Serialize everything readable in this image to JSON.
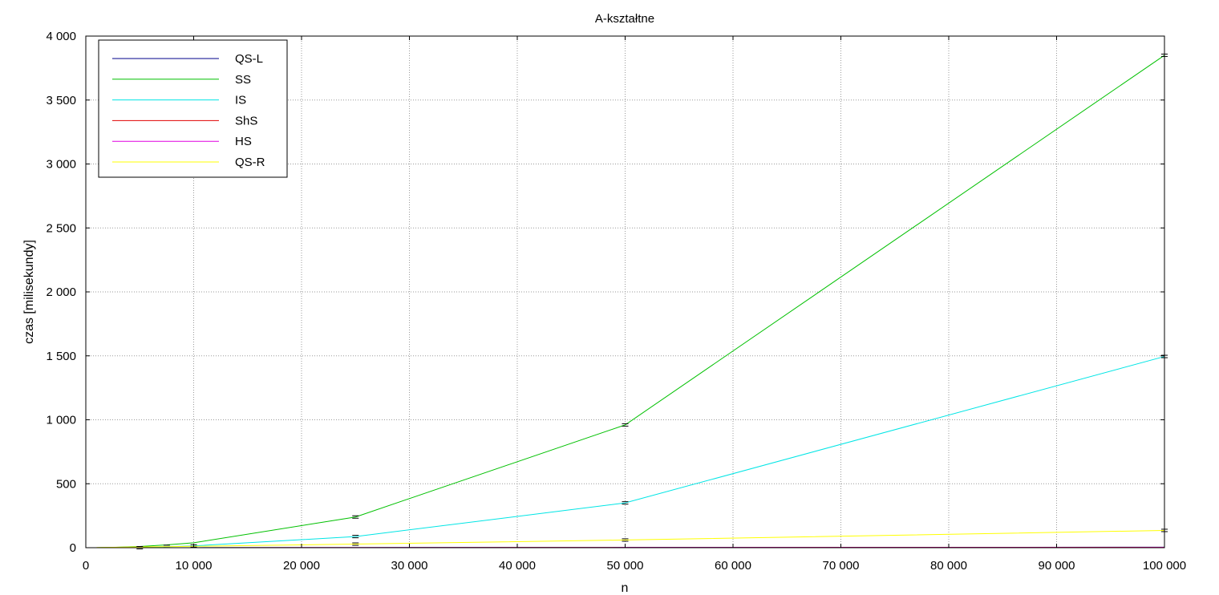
{
  "chart_data": {
    "type": "line",
    "title": "A-kształtne",
    "xlabel": "n",
    "ylabel": "czas [milisekundy]",
    "xlim": [
      0,
      100000
    ],
    "ylim": [
      0,
      4000
    ],
    "x_ticks": [
      0,
      10000,
      20000,
      30000,
      40000,
      50000,
      60000,
      70000,
      80000,
      90000,
      100000
    ],
    "x_tick_labels": [
      "0",
      "10 000",
      "20 000",
      "30 000",
      "40 000",
      "50 000",
      "60 000",
      "70 000",
      "80 000",
      "90 000",
      "100 000"
    ],
    "y_ticks": [
      0,
      500,
      1000,
      1500,
      2000,
      2500,
      3000,
      3500,
      4000
    ],
    "y_tick_labels": [
      "0",
      "500",
      "1 000",
      "1 500",
      "2 000",
      "2 500",
      "3 000",
      "3 500",
      "4 000"
    ],
    "grid": true,
    "legend_position": "top-left",
    "x": [
      1000,
      2500,
      5000,
      7500,
      10000,
      25000,
      50000,
      100000
    ],
    "series": [
      {
        "name": "QS-L",
        "color": "#00008b",
        "values": [
          0,
          0,
          0.2,
          0.3,
          0.4,
          1,
          2,
          4
        ]
      },
      {
        "name": "SS",
        "color": "#00c000",
        "values": [
          0.4,
          2.4,
          9.6,
          21.6,
          38.5,
          240,
          960,
          3850
        ]
      },
      {
        "name": "IS",
        "color": "#00e5e5",
        "values": [
          0.15,
          0.9,
          3.5,
          8,
          14,
          87,
          350,
          1495
        ]
      },
      {
        "name": "ShS",
        "color": "#e00000",
        "values": [
          0,
          0,
          0.1,
          0.2,
          0.3,
          0.8,
          1.5,
          3
        ]
      },
      {
        "name": "HS",
        "color": "#e000e0",
        "values": [
          0,
          0,
          0.1,
          0.2,
          0.3,
          0.7,
          1.2,
          2
        ]
      },
      {
        "name": "QS-R",
        "color": "#ffff00",
        "values": [
          1.5,
          3.5,
          6,
          8,
          11,
          28,
          60,
          135
        ]
      }
    ],
    "error_bars": [
      {
        "x": 5000,
        "y": 0
      },
      {
        "x": 7500,
        "y": 10
      },
      {
        "x": 10000,
        "y": 14
      },
      {
        "x": 25000,
        "y": 28
      },
      {
        "x": 25000,
        "y": 87
      },
      {
        "x": 25000,
        "y": 240
      },
      {
        "x": 50000,
        "y": 60
      },
      {
        "x": 50000,
        "y": 350
      },
      {
        "x": 50000,
        "y": 960
      },
      {
        "x": 100000,
        "y": 135
      },
      {
        "x": 100000,
        "y": 1495
      },
      {
        "x": 100000,
        "y": 3850
      }
    ]
  }
}
